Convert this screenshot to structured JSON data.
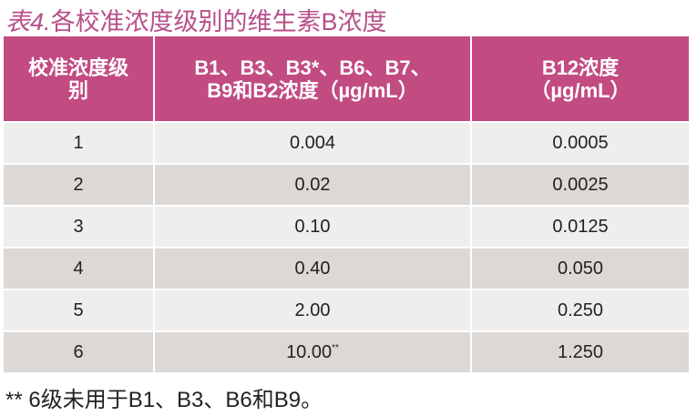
{
  "title": {
    "prefix": "表4.",
    "text": "各校准浓度级别的维生素B浓度"
  },
  "table": {
    "headers": [
      "校准浓度级别",
      "B1、B3、B3*、B6、B7、B9和B2浓度（µg/mL）",
      "B12浓度（µg/mL）"
    ],
    "rows": [
      {
        "level": "1",
        "b_mix": "0.004",
        "b_mix_mark": "",
        "b12": "0.0005"
      },
      {
        "level": "2",
        "b_mix": "0.02",
        "b_mix_mark": "",
        "b12": "0.0025"
      },
      {
        "level": "3",
        "b_mix": "0.10",
        "b_mix_mark": "",
        "b12": "0.0125"
      },
      {
        "level": "4",
        "b_mix": "0.40",
        "b_mix_mark": "",
        "b12": "0.050"
      },
      {
        "level": "5",
        "b_mix": "2.00",
        "b_mix_mark": "",
        "b12": "0.250"
      },
      {
        "level": "6",
        "b_mix": "10.00",
        "b_mix_mark": "**",
        "b12": "1.250"
      }
    ]
  },
  "footnote": "** 6级未用于B1、B3、B6和B9。",
  "colors": {
    "header": "#c24b82",
    "title": "#b8508a",
    "row_light": "#f0eeed",
    "row_dark": "#dcd8d6"
  }
}
